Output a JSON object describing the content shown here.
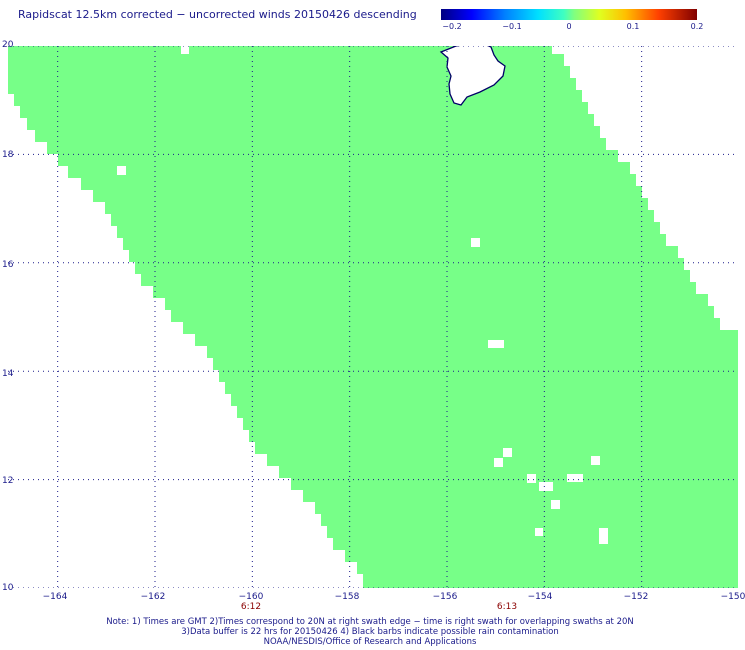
{
  "title": "Rapidscat 12.5km corrected − uncorrected winds 20150426 descending",
  "colorbar": {
    "labels": [
      "−0.2",
      "−0.1",
      "0",
      "0.1",
      "0.2"
    ],
    "range": [
      -0.2,
      0.2
    ]
  },
  "axes": {
    "x_ticks": [
      "−164",
      "−162",
      "−160",
      "−158",
      "−156",
      "−154",
      "−152",
      "−150"
    ],
    "x_values": [
      -164,
      -162,
      -160,
      -158,
      -156,
      -154,
      -152,
      -150
    ],
    "y_ticks": [
      "20",
      "18",
      "16",
      "14",
      "12",
      "10"
    ],
    "y_values": [
      20,
      18,
      16,
      14,
      12,
      10
    ],
    "lon_range": [
      -165,
      -150
    ],
    "lat_range": [
      10,
      20
    ]
  },
  "swath_times": [
    {
      "label": "6:12",
      "lon": -160.3
    },
    {
      "label": "6:13",
      "lon": -155.4
    }
  ],
  "colors": {
    "field": "#77ff88",
    "coast": "#000066",
    "grid": "#1a1a8a",
    "text": "#1a1a8a",
    "time": "#8b0000"
  },
  "notes": [
    "Note: 1) Times are GMT 2)Times correspond to 20N at right swath edge − time is right swath for overlapping swaths at 20N",
    "3)Data buffer is 22 hrs for 20150426 4) Black barbs indicate possible rain contamination",
    "NOAA/NESDIS/Office of Research and Applications"
  ]
}
